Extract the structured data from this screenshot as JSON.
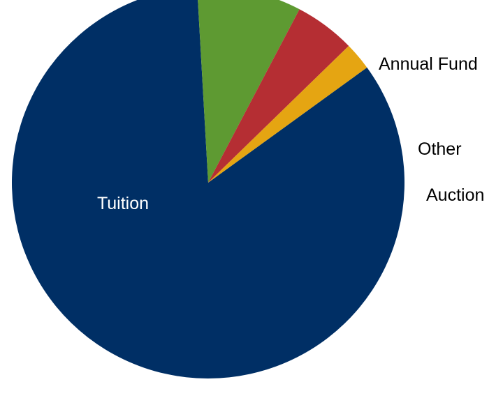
{
  "chart_data": {
    "type": "pie",
    "slices": [
      {
        "label": "Tuition",
        "value": 84.1,
        "color": "#002f65"
      },
      {
        "label": "Annual Fund",
        "value": 8.6,
        "color": "#5e9a32"
      },
      {
        "label": "Other",
        "value": 5.0,
        "color": "#b52e33"
      },
      {
        "label": "Auction",
        "value": 2.3,
        "color": "#e5a512"
      }
    ],
    "label_colors": {
      "inside": "#ffffff",
      "outside": "#000000"
    },
    "legend": "none"
  }
}
